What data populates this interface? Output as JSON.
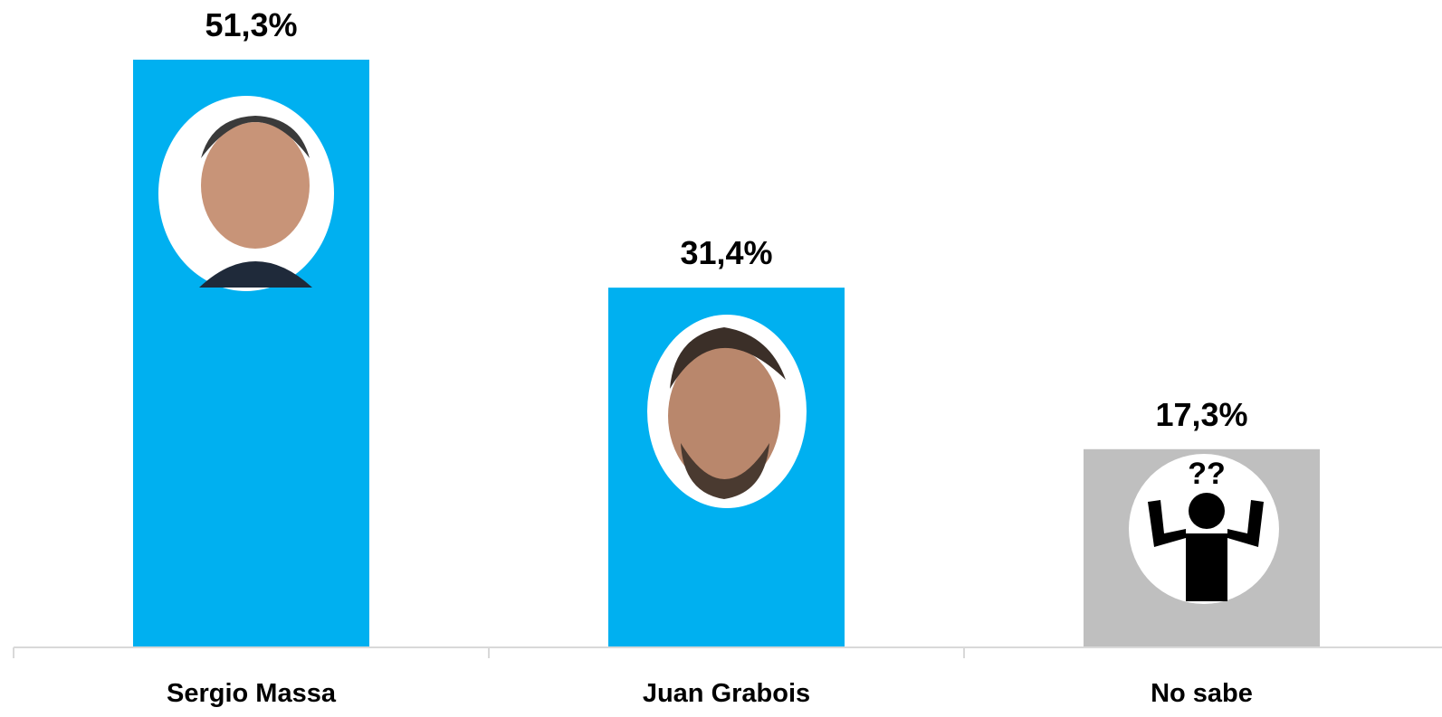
{
  "chart_data": {
    "type": "bar",
    "categories": [
      "Sergio Massa",
      "Juan Grabois",
      "No sabe"
    ],
    "values": [
      51.3,
      31.4,
      17.3
    ],
    "value_labels": [
      "51,3%",
      "31,4%",
      "17,3%"
    ],
    "colors": [
      "#00b0f0",
      "#00b0f0",
      "#bfbfbf"
    ]
  }
}
